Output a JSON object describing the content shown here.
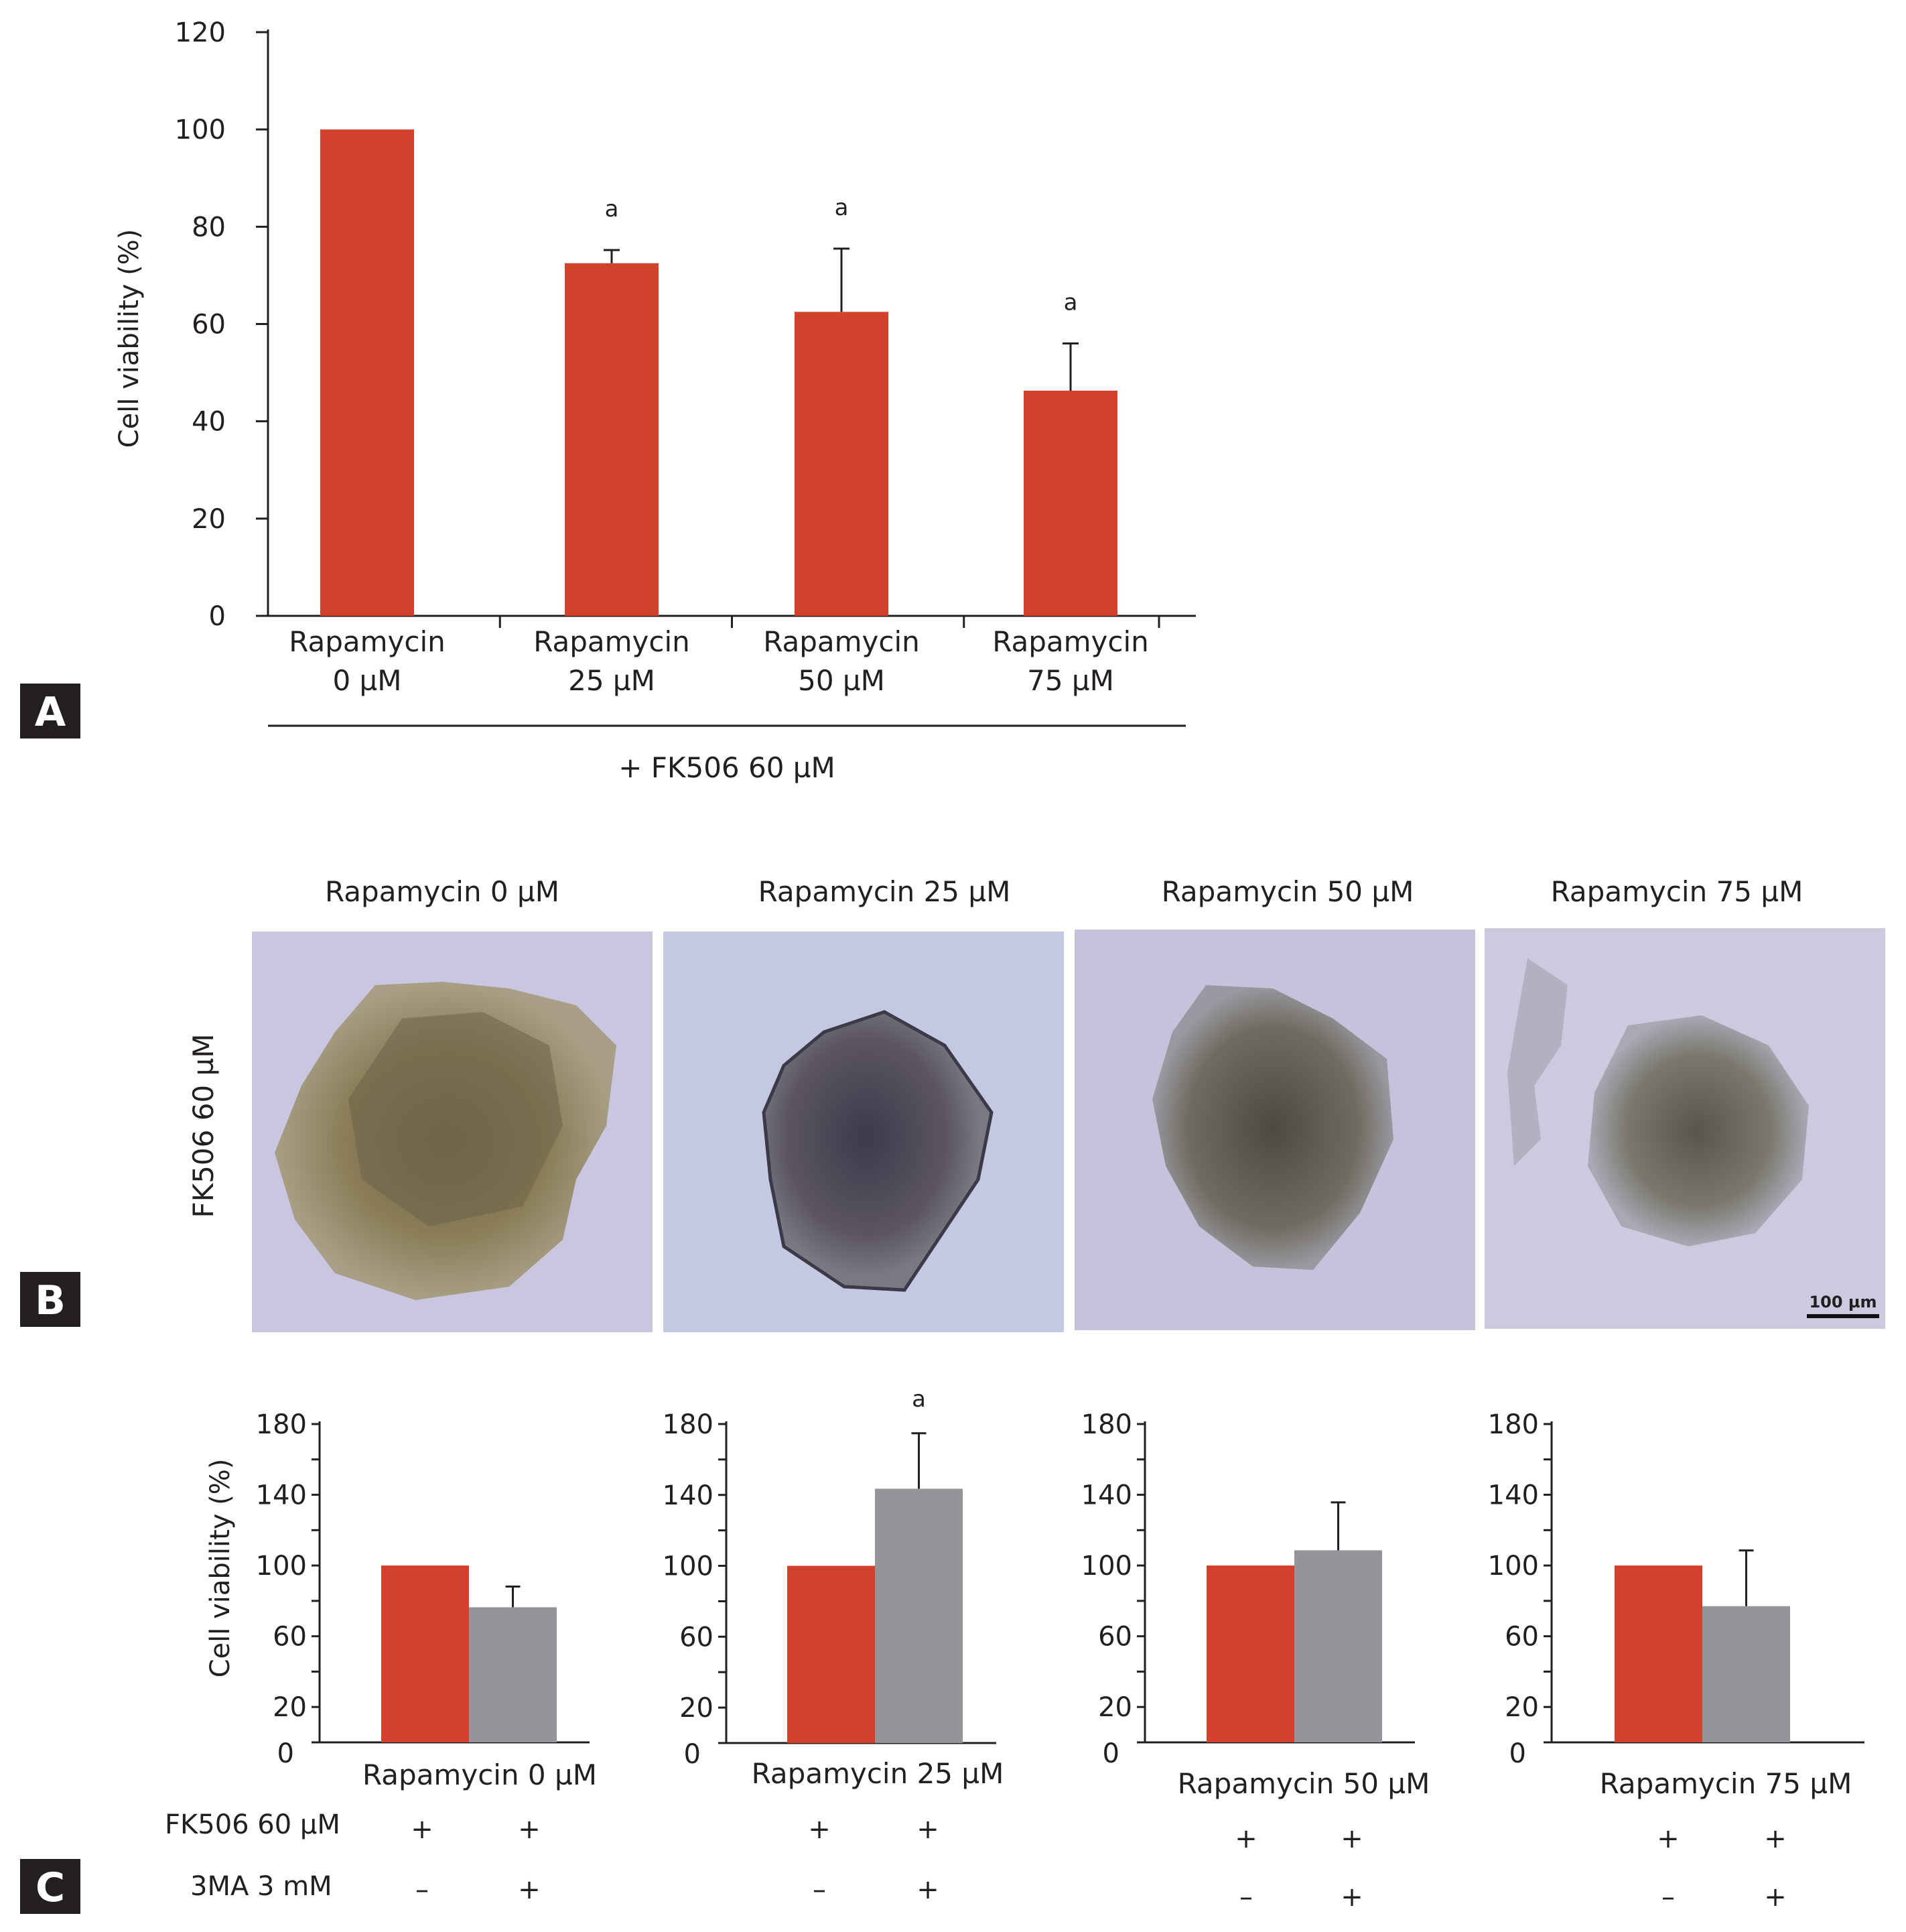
{
  "colors": {
    "control_bar": "#d2412c",
    "treated_bar": "#939598",
    "axis": "#231f20",
    "label_box": "#231f20"
  },
  "panel_labels": [
    "A",
    "B",
    "C"
  ],
  "chart_data": [
    {
      "id": "A",
      "type": "bar",
      "ylabel": "Cell viability (%)",
      "ylim": [
        0,
        120
      ],
      "yticks": [
        0,
        20,
        40,
        60,
        80,
        100,
        120
      ],
      "categories": [
        [
          "Rapamycin",
          "0 µM"
        ],
        [
          "Rapamycin",
          "25 µM"
        ],
        [
          "Rapamycin",
          "50 µM"
        ],
        [
          "Rapamycin",
          "75 µM"
        ]
      ],
      "values": [
        100,
        72.5,
        62.5,
        46.3
      ],
      "errors": [
        0,
        2.7,
        13.0,
        9.7
      ],
      "significance": [
        "",
        "a",
        "a",
        "a"
      ],
      "group_label": "+ FK506 60 µM"
    },
    {
      "id": "C1",
      "type": "bar",
      "ylabel": "Cell viability (%)",
      "ylim": [
        0,
        180
      ],
      "yticks": [
        0,
        20,
        60,
        100,
        140,
        180
      ],
      "xlabel": "Rapamycin 0 µM",
      "series": [
        {
          "name": "FK506",
          "values": [
            100
          ],
          "error": 0
        },
        {
          "name": "FK506 + 3MA",
          "values": [
            76.4
          ],
          "error": 11.7
        }
      ],
      "significance": [
        "",
        ""
      ]
    },
    {
      "id": "C2",
      "type": "bar",
      "ylim": [
        0,
        180
      ],
      "yticks": [
        0,
        20,
        60,
        100,
        140,
        180
      ],
      "xlabel": "Rapamycin 25 µM",
      "series": [
        {
          "name": "FK506",
          "values": [
            100
          ],
          "error": 0
        },
        {
          "name": "FK506 + 3MA",
          "values": [
            143.5
          ],
          "error": 31.3
        }
      ],
      "significance": [
        "",
        "a"
      ]
    },
    {
      "id": "C3",
      "type": "bar",
      "ylim": [
        0,
        180
      ],
      "yticks": [
        0,
        20,
        60,
        100,
        140,
        180
      ],
      "xlabel": "Rapamycin 50 µM",
      "series": [
        {
          "name": "FK506",
          "values": [
            100
          ],
          "error": 0
        },
        {
          "name": "FK506 + 3MA",
          "values": [
            108.6
          ],
          "error": 27.1
        }
      ],
      "significance": [
        "",
        ""
      ]
    },
    {
      "id": "C4",
      "type": "bar",
      "ylim": [
        0,
        180
      ],
      "yticks": [
        0,
        20,
        60,
        100,
        140,
        180
      ],
      "xlabel": "Rapamycin 75 µM",
      "series": [
        {
          "name": "FK506",
          "values": [
            100
          ],
          "error": 0
        },
        {
          "name": "FK506 + 3MA",
          "values": [
            77
          ],
          "error": 31.5
        }
      ],
      "significance": [
        "",
        ""
      ]
    }
  ],
  "micrographs": {
    "row_label": "FK506 60 µM",
    "titles": [
      "Rapamycin 0 µM",
      "Rapamycin 25 µM",
      "Rapamycin 50 µM",
      "Rapamycin 75 µM"
    ],
    "scale_bar": "100 µm"
  },
  "treatment_table": {
    "rows": [
      {
        "label": "FK506 60 µM",
        "marks": [
          "+",
          "+"
        ]
      },
      {
        "label": "3MA 3 mM",
        "marks": [
          "–",
          "+"
        ]
      }
    ]
  }
}
